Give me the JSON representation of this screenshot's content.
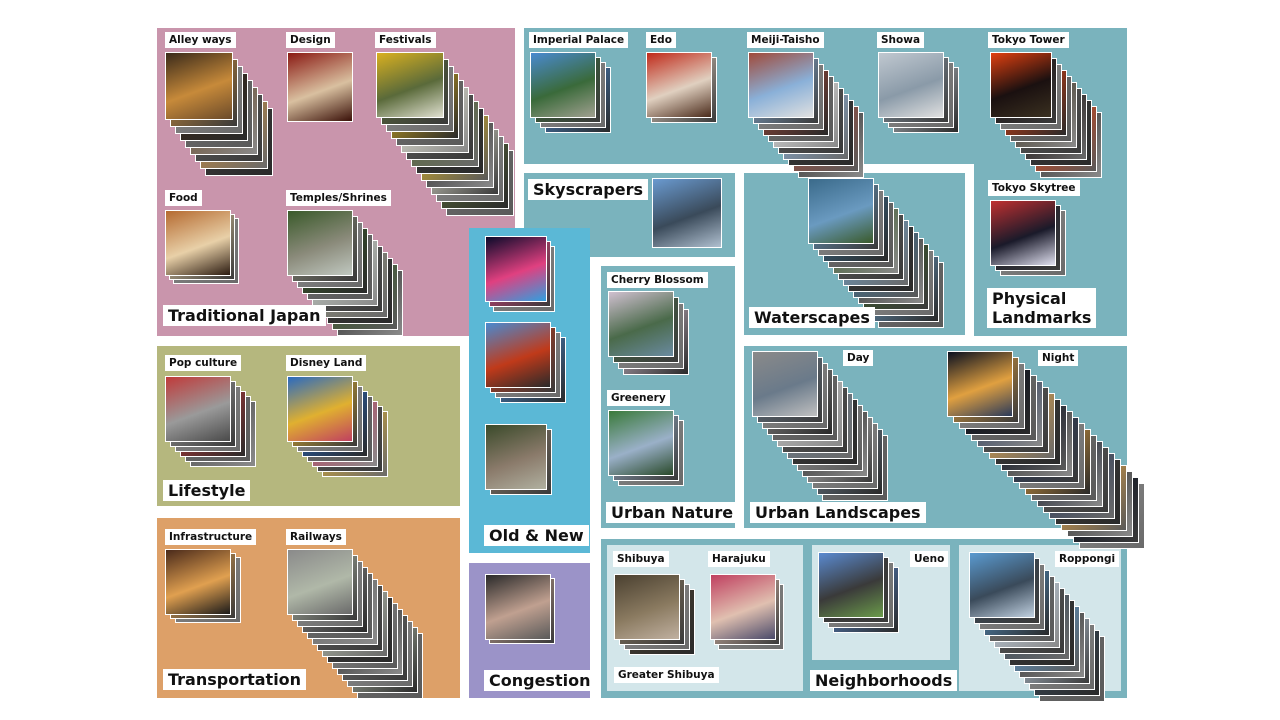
{
  "panels": {
    "traditional": {
      "label": "Traditional Japan",
      "color": "#c995ac"
    },
    "lifestyle": {
      "label": "Lifestyle",
      "color": "#b5b77e"
    },
    "transportation": {
      "label": "Transportation",
      "color": "#dda068"
    },
    "old_new": {
      "label": "Old & New",
      "color": "#5bb8d6"
    },
    "congestion": {
      "label": "Congestion",
      "color": "#9b93c8"
    },
    "physical": {
      "label": "Physical Landmarks",
      "line1": "Physical",
      "line2": "Landmarks",
      "color": "#7ab3bd"
    },
    "skyscrapers": {
      "label": "Skyscrapers",
      "color": "#7ab3bd"
    },
    "waterscapes": {
      "label": "Waterscapes",
      "color": "#7ab3bd"
    },
    "urban_nature": {
      "label": "Urban Nature",
      "color": "#7ab3bd"
    },
    "urban_landscapes": {
      "label": "Urban Landscapes",
      "color": "#7ab3bd"
    },
    "neighborhoods": {
      "label": "Neighborhoods",
      "color": "#7ab3bd",
      "sub_color": "#d3e6ea"
    }
  },
  "tags": {
    "alley": "Alley ways",
    "design": "Design",
    "festivals": "Festivals",
    "food": "Food",
    "temples": "Temples/Shrines",
    "pop": "Pop culture",
    "disney": "Disney Land",
    "infra": "Infrastructure",
    "railways": "Railways",
    "imperial": "Imperial Palace",
    "edo": "Edo",
    "meiji": "Meiji-Taisho",
    "showa": "Showa",
    "tower": "Tokyo Tower",
    "skytree": "Tokyo Skytree",
    "cherry": "Cherry Blossom",
    "greenery": "Greenery",
    "day": "Day",
    "night": "Night",
    "shibuya": "Shibuya",
    "harajuku": "Harajuku",
    "greater": "Greater Shibuya",
    "ueno": "Ueno",
    "roppongi": "Roppongi"
  }
}
